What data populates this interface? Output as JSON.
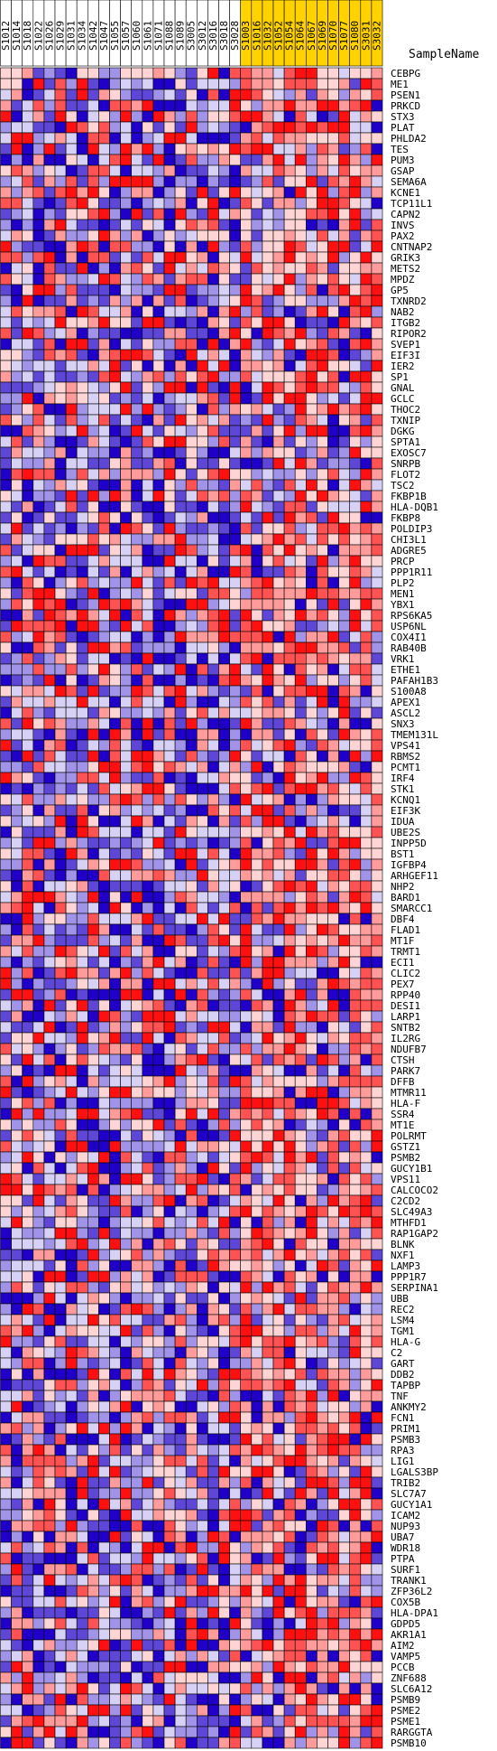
{
  "chart_data": {
    "type": "heatmap",
    "header_label": "SampleName",
    "samples": [
      "S1012",
      "S1014",
      "S1018",
      "S1022",
      "S1026",
      "S1029",
      "S1031",
      "S1034",
      "S1042",
      "S1047",
      "S1055",
      "S1057",
      "S1060",
      "S1061",
      "S1071",
      "S1088",
      "S1089",
      "S3005",
      "S3012",
      "S3016",
      "S3018",
      "S3028",
      "S1003",
      "S1016",
      "S1032",
      "S1052",
      "S1054",
      "S1064",
      "S1067",
      "S1069",
      "S1070",
      "S1077",
      "S1080",
      "S3031",
      "S3032"
    ],
    "group_colors": {
      "control": "#ffffff",
      "case": "#ffd200"
    },
    "sample_groups": [
      "control",
      "control",
      "control",
      "control",
      "control",
      "control",
      "control",
      "control",
      "control",
      "control",
      "control",
      "control",
      "control",
      "control",
      "control",
      "control",
      "control",
      "control",
      "control",
      "control",
      "control",
      "control",
      "case",
      "case",
      "case",
      "case",
      "case",
      "case",
      "case",
      "case",
      "case",
      "case",
      "case",
      "case",
      "case"
    ],
    "genes": [
      "CEBPG",
      "ME1",
      "PSEN1",
      "PRKCD",
      "STX3",
      "PLAT",
      "PHLDA2",
      "TES",
      "PUM3",
      "GSAP",
      "SEMA6A",
      "KCNE1",
      "TCP11L1",
      "CAPN2",
      "INVS",
      "PAX2",
      "CNTNAP2",
      "GRIK3",
      "METS2",
      "MPDZ",
      "GP5",
      "TXNRD2",
      "NAB2",
      "ITGB2",
      "RIPOR2",
      "SVEP1",
      "EIF3I",
      "IER2",
      "SP1",
      "GNAL",
      "GCLC",
      "THOC2",
      "TXNIP",
      "DGKG",
      "SPTA1",
      "EXOSC7",
      "SNRPB",
      "FLOT2",
      "TSC2",
      "FKBP1B",
      "HLA-DQB1",
      "FKBP8",
      "POLDIP3",
      "CHI3L1",
      "ADGRE5",
      "PRCP",
      "PPP1R11",
      "PLP2",
      "MEN1",
      "YBX1",
      "RPS6KA5",
      "USP6NL",
      "COX4I1",
      "RAB40B",
      "VRK1",
      "ETHE1",
      "PAFAH1B3",
      "S100A8",
      "APEX1",
      "ASCL2",
      "SNX3",
      "TMEM131L",
      "VPS41",
      "RBMS2",
      "PCMT1",
      "IRF4",
      "STK1",
      "KCNQ1",
      "EIF3K",
      "IDUA",
      "UBE2S",
      "INPP5D",
      "BST1",
      "IGFBP4",
      "ARHGEF11",
      "NHP2",
      "BARD1",
      "SMARCC1",
      "DBF4",
      "FLAD1",
      "MT1F",
      "TRMT1",
      "ECI1",
      "CLIC2",
      "PEX7",
      "RPP40",
      "DESI1",
      "LARP1",
      "SNTB2",
      "IL2RG",
      "NDUFB7",
      "CTSH",
      "PARK7",
      "DFFB",
      "MTMR11",
      "HLA-F",
      "SSR4",
      "MT1E",
      "POLRMT",
      "GSTZ1",
      "PSMB2",
      "GUCY1B1",
      "VPS11",
      "CALCOCO2",
      "C2CD2",
      "SLC49A3",
      "MTHFD1",
      "RAP1GAP2",
      "BLNK",
      "NXF1",
      "LAMP3",
      "PPP1R7",
      "SERPINA1",
      "UBB",
      "REC2",
      "LSM4",
      "TGM1",
      "HLA-G",
      "C2",
      "GART",
      "DDB2",
      "TAPBP",
      "TNF",
      "ANKMY2",
      "FCN1",
      "PRIM1",
      "PSMB3",
      "RPA3",
      "LIG1",
      "LGALS3BP",
      "TRIB2",
      "SLC7A7",
      "GUCY1A1",
      "ICAM2",
      "NUP93",
      "UBA7",
      "WDR18",
      "PTPA",
      "SURF1",
      "TRANK1",
      "ZFP36L2",
      "COX5B",
      "HLA-DPA1",
      "GDPD5",
      "AKR1A1",
      "AIM2",
      "VAMP5",
      "PCCB",
      "ZNF688",
      "SLC6A12",
      "PSMB9",
      "PSME2",
      "PSME1",
      "RARGGTA",
      "PSMB10"
    ],
    "value_range": [
      -1,
      1
    ],
    "color_scale": {
      "low": "#2000c8",
      "mid": "#ffffff",
      "high": "#ff1010"
    }
  }
}
